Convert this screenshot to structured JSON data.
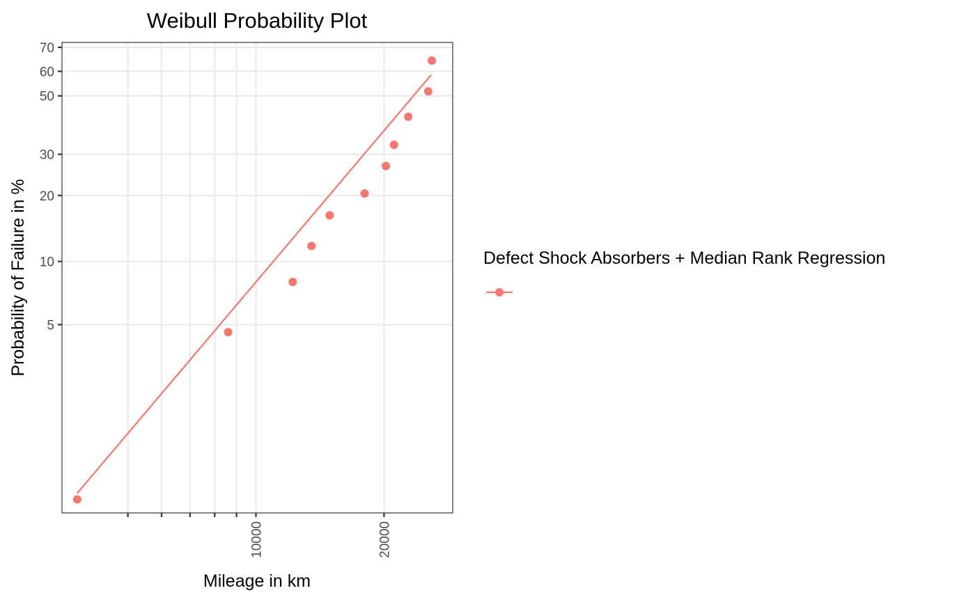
{
  "chart_data": {
    "type": "scatter",
    "title": "Weibull Probability Plot",
    "xlabel": "Mileage in km",
    "ylabel": "Probability of Failure in %",
    "x_scale": "log",
    "y_scale": "weibull",
    "xlim": [
      3500,
      29000
    ],
    "ylim": [
      0.6,
      72
    ],
    "x_major_ticks": [
      10000,
      20000
    ],
    "x_major_tick_labels": [
      "10000",
      "20000"
    ],
    "x_minor_ticks": [
      5000,
      6000,
      7000,
      8000,
      9000
    ],
    "y_ticks": [
      5,
      10,
      20,
      30,
      50,
      60,
      70
    ],
    "y_tick_labels": [
      "5",
      "10",
      "20",
      "30",
      "50",
      "60",
      "70"
    ],
    "y_grid": [
      5,
      10,
      20,
      30,
      50,
      60,
      70
    ],
    "grid": true,
    "legend_title": "Defect Shock Absorbers + Median Rank Regression",
    "legend_position": "right",
    "series": [
      {
        "color": "#F8766D",
        "points": [
          {
            "x": 3800,
            "y": 0.7
          },
          {
            "x": 8600,
            "y": 4.6
          },
          {
            "x": 12200,
            "y": 8.0
          },
          {
            "x": 13500,
            "y": 11.8
          },
          {
            "x": 14900,
            "y": 16.3
          },
          {
            "x": 18000,
            "y": 20.4
          },
          {
            "x": 20200,
            "y": 26.8
          },
          {
            "x": 21100,
            "y": 32.8
          },
          {
            "x": 22800,
            "y": 42.1
          },
          {
            "x": 25400,
            "y": 51.8
          },
          {
            "x": 25900,
            "y": 64.5
          }
        ],
        "fit_line": [
          {
            "x": 3800,
            "y": 0.75
          },
          {
            "x": 25800,
            "y": 58.5
          }
        ]
      }
    ]
  }
}
